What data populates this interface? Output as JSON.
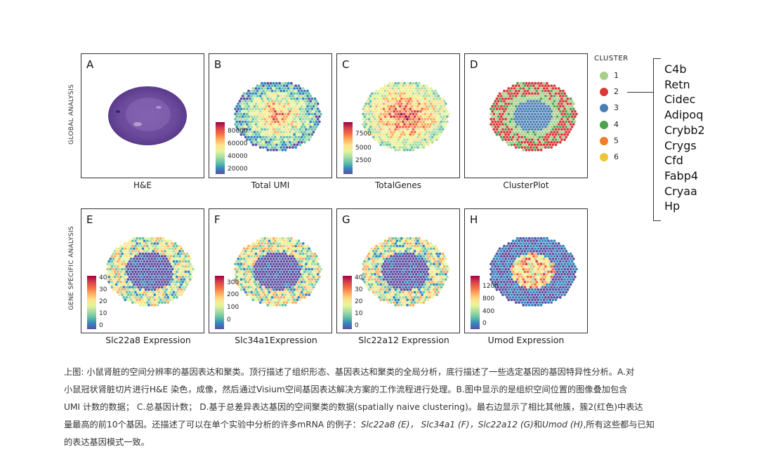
{
  "row_labels": {
    "global": "GLOBAL ANALYSIS",
    "gene": "GENE SPECIFIC ANALYSIS"
  },
  "panels": [
    {
      "letter": "A",
      "label": "H&E"
    },
    {
      "letter": "B",
      "label": "Total UMI",
      "ticks": [
        "80000",
        "60000",
        "40000",
        "20000"
      ]
    },
    {
      "letter": "C",
      "label": "TotalGenes",
      "ticks": [
        "7500",
        "5000",
        "2500"
      ]
    },
    {
      "letter": "D",
      "label": "ClusterPlot"
    },
    {
      "letter": "E",
      "label": "Slc22a8 Expression",
      "ticks": [
        "40",
        "30",
        "20",
        "10",
        "0"
      ]
    },
    {
      "letter": "F",
      "label": "Slc34a1Expression",
      "ticks": [
        "300",
        "200",
        "100",
        "0"
      ]
    },
    {
      "letter": "G",
      "label": "Slc22a12 Expression",
      "ticks": [
        "40",
        "30",
        "20",
        "10",
        "0"
      ]
    },
    {
      "letter": "H",
      "label": "Umod Expression",
      "ticks": [
        "1200",
        "800",
        "400",
        "0"
      ]
    }
  ],
  "legend": {
    "title": "CLUSTER",
    "items": [
      {
        "label": "1",
        "color": "#a8d08d"
      },
      {
        "label": "2",
        "color": "#d73b3b"
      },
      {
        "label": "3",
        "color": "#4a7fb5"
      },
      {
        "label": "4",
        "color": "#4ea34e"
      },
      {
        "label": "5",
        "color": "#ef7f2e"
      },
      {
        "label": "6",
        "color": "#f0c43a"
      }
    ]
  },
  "genes": [
    "C4b",
    "Retn",
    "Cidec",
    "Adipoq",
    "Crybb2",
    "Crygs",
    "Cfd",
    "Fabp4",
    "Cryaa",
    "Hp"
  ],
  "caption": {
    "line1": "上图: 小鼠肾脏的空间分辨率的基因表达和聚类。顶行描述了组织形态、基因表达和聚类的全局分析，底行描述了一些选定基因的基因特异性分析。A.对",
    "line2": "小鼠冠状肾脏切片进行H&E 染色，成像，然后通过Visium空间基因表达解决方案的工作流程进行处理。B.图中显示的是组织空间位置的图像叠加包含",
    "line3": "UMI 计数的数据；  C.总基因计数；  D.基于总差异表达基因的空间聚类的数据(spatially naive clustering)。最右边显示了相比其他簇，簇2(红色)中表达",
    "line4_a": "量最高的前10个基因。还描述了可以在单个实验中分析的许多mRNA 的例子：",
    "gene1": "Slc22a8 (E)，",
    "gene2": "Slc34a1 (F)，",
    "gene3": "Slc22a12 (G)",
    "and": "和",
    "gene4": "Umod (H)",
    "line4_b": ",所有这些都与已知",
    "line5": "的表达基因模式一致。"
  }
}
